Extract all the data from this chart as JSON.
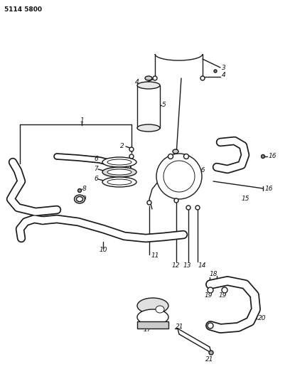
{
  "part_number": "5114 5800",
  "bg_color": "#ffffff",
  "line_color": "#1a1a1a",
  "text_color": "#111111",
  "fig_width": 4.08,
  "fig_height": 5.33,
  "dpi": 100
}
